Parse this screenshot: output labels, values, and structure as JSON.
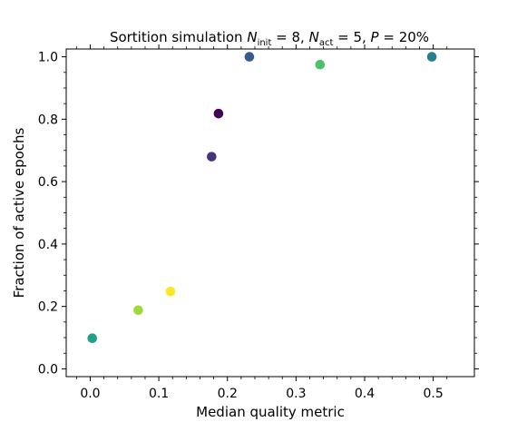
{
  "chart_data": {
    "type": "scatter",
    "title": "Sortition simulation N_init = 8, N_act = 5, P = 20%",
    "title_parts": {
      "prefix": "Sortition simulation ",
      "n1": "N",
      "n1_sub": "init",
      "n1_eq": " = 8, ",
      "n2": "N",
      "n2_sub": "act",
      "n2_eq": " = 5, ",
      "p": "P",
      "p_eq": " = 20%"
    },
    "xlabel": "Median quality metric",
    "ylabel": "Fraction of active epochs",
    "xlim": [
      -0.035,
      0.56
    ],
    "ylim": [
      -0.025,
      1.025
    ],
    "xticks": [
      0.0,
      0.1,
      0.2,
      0.3,
      0.4,
      0.5
    ],
    "yticks": [
      0.0,
      0.2,
      0.4,
      0.6,
      0.8,
      1.0
    ],
    "xtick_labels": [
      "0.0",
      "0.1",
      "0.2",
      "0.3",
      "0.4",
      "0.5"
    ],
    "ytick_labels": [
      "0.0",
      "0.2",
      "0.4",
      "0.6",
      "0.8",
      "1.0"
    ],
    "grid": false,
    "points": [
      {
        "x": 0.187,
        "y": 0.818,
        "color": "#440154"
      },
      {
        "x": 0.177,
        "y": 0.68,
        "color": "#46337e"
      },
      {
        "x": 0.232,
        "y": 1.0,
        "color": "#365c8d"
      },
      {
        "x": 0.498,
        "y": 1.0,
        "color": "#277f8e"
      },
      {
        "x": 0.003,
        "y": 0.098,
        "color": "#1fa187"
      },
      {
        "x": 0.335,
        "y": 0.975,
        "color": "#4ac16d"
      },
      {
        "x": 0.07,
        "y": 0.188,
        "color": "#a0da39"
      },
      {
        "x": 0.117,
        "y": 0.248,
        "color": "#fde725"
      }
    ]
  }
}
